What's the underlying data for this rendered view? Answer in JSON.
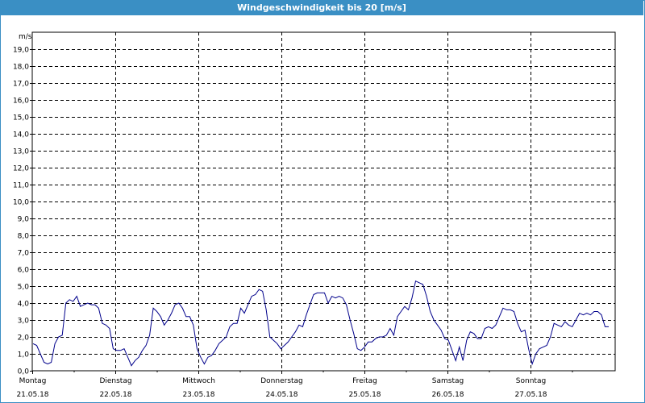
{
  "title": "Windgeschwindigkeit bis 20 [m/s]",
  "colors": {
    "frame": "#3a8fc4",
    "line": "#00008b",
    "grid": "#000000"
  },
  "chart_data": {
    "type": "line",
    "title": "Windgeschwindigkeit bis 20 [m/s]",
    "ylabel": "m/s",
    "ylim": [
      0,
      20
    ],
    "yticks": [
      "0,0",
      "1,0",
      "2,0",
      "3,0",
      "4,0",
      "5,0",
      "6,0",
      "7,0",
      "8,0",
      "9,0",
      "10,0",
      "11,0",
      "12,0",
      "13,0",
      "14,0",
      "15,0",
      "16,0",
      "17,0",
      "18,0",
      "19,0"
    ],
    "grid": true,
    "xlim_days": [
      0,
      7
    ],
    "days": [
      {
        "day": "Montag",
        "date": "21.05.18"
      },
      {
        "day": "Dienstag",
        "date": "22.05.18"
      },
      {
        "day": "Mittwoch",
        "date": "23.05.18"
      },
      {
        "day": "Donnerstag",
        "date": "24.05.18"
      },
      {
        "day": "Freitag",
        "date": "25.05.18"
      },
      {
        "day": "Samstag",
        "date": "26.05.18"
      },
      {
        "day": "Sonntag",
        "date": "27.05.18"
      }
    ],
    "series": [
      {
        "values": [
          1.6,
          1.5,
          1.0,
          0.5,
          0.4,
          0.5,
          1.6,
          2.0,
          2.1,
          4.0,
          4.2,
          4.1,
          4.4,
          3.8,
          3.9,
          4.0,
          3.9,
          3.9,
          3.7,
          2.8,
          2.7,
          2.5,
          1.3,
          1.2,
          1.2,
          1.3,
          0.8,
          0.3,
          0.6,
          0.8,
          1.2,
          1.5,
          2.1,
          3.7,
          3.5,
          3.2,
          2.7,
          3.0,
          3.4,
          3.9,
          4.0,
          3.7,
          3.2,
          3.2,
          2.7,
          1.3,
          0.8,
          0.4,
          0.8,
          0.9,
          1.2,
          1.6,
          1.8,
          2.0,
          2.6,
          2.8,
          2.8,
          3.7,
          3.4,
          3.9,
          4.4,
          4.5,
          4.8,
          4.7,
          3.6,
          2.0,
          1.8,
          1.6,
          1.3,
          1.5,
          1.7,
          2.0,
          2.3,
          2.7,
          2.6,
          3.3,
          3.9,
          4.5,
          4.6,
          4.6,
          4.6,
          4.0,
          4.4,
          4.3,
          4.4,
          4.3,
          3.9,
          3.0,
          2.2,
          1.3,
          1.2,
          1.4,
          1.7,
          1.7,
          1.9,
          2.0,
          2.0,
          2.1,
          2.5,
          2.1,
          3.2,
          3.5,
          3.8,
          3.6,
          4.3,
          5.3,
          5.2,
          5.1,
          4.4,
          3.5,
          3.0,
          2.7,
          2.4,
          1.9,
          1.8,
          1.2,
          0.6,
          1.4,
          0.6,
          1.8,
          2.3,
          2.2,
          1.9,
          1.9,
          2.5,
          2.6,
          2.5,
          2.7,
          3.2,
          3.7,
          3.6,
          3.6,
          3.5,
          2.8,
          2.3,
          2.4,
          1.3,
          0.4,
          1.0,
          1.3,
          1.4,
          1.5,
          2.0,
          2.8,
          2.7,
          2.6,
          2.9,
          2.7,
          2.6,
          3.0,
          3.4,
          3.3,
          3.4,
          3.3,
          3.5,
          3.5,
          3.3,
          2.6,
          2.6
        ]
      }
    ]
  }
}
